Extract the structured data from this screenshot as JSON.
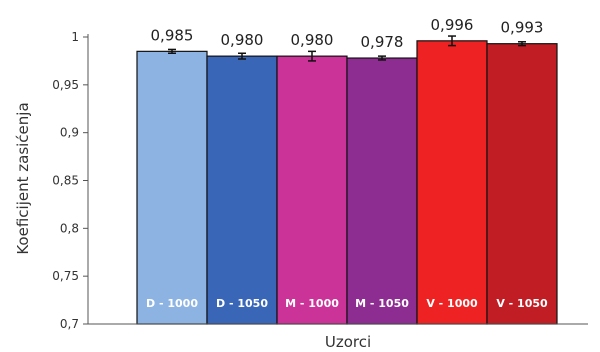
{
  "chart_data": {
    "type": "bar",
    "categories": [
      "D - 1000",
      "D - 1050",
      "M - 1000",
      "M - 1050",
      "V - 1000",
      "V - 1050"
    ],
    "values": [
      0.985,
      0.98,
      0.98,
      0.978,
      0.996,
      0.993
    ],
    "errors": [
      0.002,
      0.003,
      0.005,
      0.002,
      0.005,
      0.002
    ],
    "value_labels": [
      "0,985",
      "0,980",
      "0,980",
      "0,978",
      "0,996",
      "0,993"
    ],
    "colors": [
      "#8db3e2",
      "#3a66b8",
      "#cc3399",
      "#8e2d91",
      "#ee2222",
      "#c01d24"
    ],
    "title": "",
    "xlabel": "Uzorci",
    "ylabel": "Koeficijent zasićenja",
    "ylim": [
      0.7,
      1.0
    ],
    "yticks": [
      0.7,
      0.75,
      0.8,
      0.85,
      0.9,
      0.95,
      1.0
    ],
    "ytick_labels": [
      "0,7",
      "0,75",
      "0,8",
      "0,85",
      "0,9",
      "0,95",
      "1"
    ],
    "grid": false,
    "legend": "none"
  }
}
